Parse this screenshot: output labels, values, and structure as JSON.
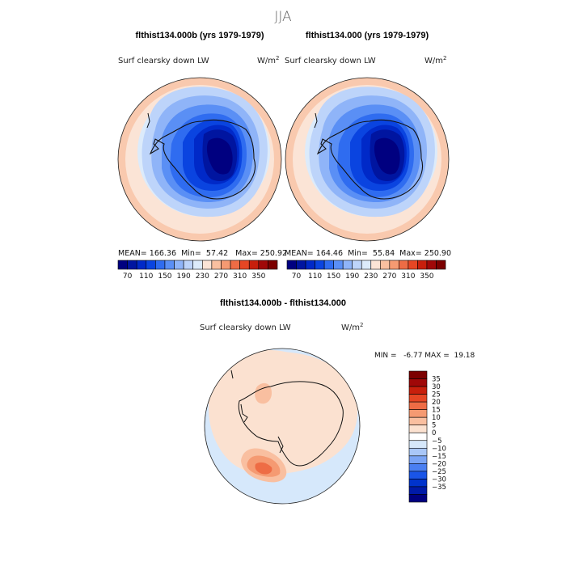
{
  "figure": {
    "title": "JJA"
  },
  "panels": [
    {
      "heading": "flthist134.000b (yrs 1979-1979)",
      "variable": "Surf clearsky down LW",
      "units": "W/m",
      "units_sup": "2",
      "stats": "MEAN= 166.36  Min=  57.42   Max= 250.92"
    },
    {
      "heading": "flthist134.000 (yrs 1979-1979)",
      "variable": "Surf clearsky down LW",
      "units": "W/m",
      "units_sup": "2",
      "stats": "MEAN= 164.46  Min=  55.84  Max= 250.90"
    }
  ],
  "diff_panel": {
    "heading": "flthist134.000b - flthist134.000",
    "variable": "Surf clearsky down LW",
    "units": "W/m",
    "units_sup": "2",
    "stats": "MIN =   -6.77 MAX =  19.18"
  },
  "colorbar_abs": {
    "colors": [
      "#000080",
      "#0015a0",
      "#0029c8",
      "#0a44e0",
      "#2f6cf0",
      "#5a8ff5",
      "#8fb4f8",
      "#bdd4fa",
      "#dcebfb",
      "#fbe4d6",
      "#f9c0a0",
      "#f59a72",
      "#ee6c45",
      "#e64624",
      "#c81f0c",
      "#a00808",
      "#7c0000"
    ],
    "labels": [
      "70",
      "110",
      "150",
      "190",
      "230",
      "270",
      "310",
      "350"
    ]
  },
  "colorbar_diff": {
    "colors": [
      "#000080",
      "#001aa8",
      "#0033cc",
      "#1a55e8",
      "#4a7ff2",
      "#7aa4f5",
      "#a9c7f8",
      "#d6e8fb",
      "#ffffff",
      "#fbe1d0",
      "#f9bfa0",
      "#f59a72",
      "#ee6c45",
      "#e64624",
      "#c81f0c",
      "#a00808",
      "#7c0000"
    ],
    "labels": [
      "35",
      "30",
      "25",
      "20",
      "15",
      "10",
      "5",
      "0",
      "−5",
      "−10",
      "−15",
      "−20",
      "−25",
      "−30",
      "−35"
    ]
  }
}
